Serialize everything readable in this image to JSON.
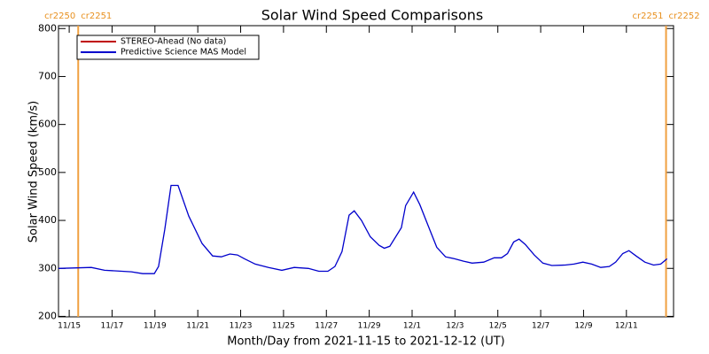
{
  "chart_data": {
    "type": "line",
    "title": "Solar Wind Speed Comparisons",
    "x_label": "Month/Day from 2021-11-15 to 2021-12-12 (UT)",
    "y_label": "Solar Wind Speed (km/s)",
    "xlim": [
      -0.5,
      28.2
    ],
    "ylim": [
      199,
      806
    ],
    "xticks": [
      {
        "value": 0,
        "label": "11/15"
      },
      {
        "value": 2,
        "label": "11/17"
      },
      {
        "value": 4,
        "label": "11/19"
      },
      {
        "value": 6,
        "label": "11/21"
      },
      {
        "value": 8,
        "label": "11/23"
      },
      {
        "value": 10,
        "label": "11/25"
      },
      {
        "value": 12,
        "label": "11/27"
      },
      {
        "value": 14,
        "label": "11/29"
      },
      {
        "value": 16,
        "label": "12/1"
      },
      {
        "value": 18,
        "label": "12/3"
      },
      {
        "value": 20,
        "label": "12/5"
      },
      {
        "value": 22,
        "label": "12/7"
      },
      {
        "value": 24,
        "label": "12/9"
      },
      {
        "value": 26,
        "label": "12/11"
      }
    ],
    "yticks": [
      200,
      300,
      400,
      500,
      600,
      700,
      800
    ],
    "cr_boundaries": [
      {
        "x": 0.42,
        "left": "cr2250",
        "right": "cr2251"
      },
      {
        "x": 27.85,
        "left": "cr2251",
        "right": "cr2252"
      }
    ],
    "cr_color": "#f0a040",
    "legend": "upper left",
    "series": [
      {
        "name": "STEREO-Ahead (No data)",
        "color": "#c00000",
        "x": [],
        "values": []
      },
      {
        "name": "Predictive Science MAS Model",
        "color": "#0000cc",
        "x": [
          -0.5,
          1.03,
          1.65,
          2.9,
          3.43,
          3.97,
          4.17,
          4.46,
          4.75,
          5.08,
          5.58,
          6.2,
          6.69,
          7.1,
          7.5,
          7.85,
          8.18,
          8.68,
          9.3,
          9.92,
          10.5,
          11.16,
          11.65,
          12.07,
          12.4,
          12.73,
          13.06,
          13.3,
          13.64,
          14.05,
          14.46,
          14.7,
          14.96,
          15.5,
          15.7,
          16.07,
          16.36,
          16.74,
          17.15,
          17.56,
          17.98,
          18.4,
          18.8,
          19.34,
          19.83,
          20.17,
          20.45,
          20.74,
          20.99,
          21.28,
          21.7,
          22.1,
          22.52,
          23.14,
          23.55,
          23.97,
          24.38,
          24.8,
          25.2,
          25.5,
          25.83,
          26.12,
          26.45,
          26.86,
          27.27,
          27.6,
          27.9
        ],
        "values": [
          300,
          302,
          296,
          293,
          289,
          289,
          304,
          381,
          473,
          473,
          409,
          352,
          326,
          324,
          330,
          328,
          320,
          309,
          302,
          296,
          302,
          300,
          294,
          294,
          304,
          335,
          411,
          420,
          400,
          366,
          348,
          342,
          346,
          385,
          431,
          459,
          433,
          390,
          344,
          324,
          320,
          315,
          311,
          313,
          322,
          322,
          331,
          355,
          361,
          350,
          328,
          311,
          306,
          307,
          309,
          313,
          309,
          302,
          304,
          313,
          331,
          337,
          326,
          313,
          307,
          309,
          320
        ]
      }
    ]
  }
}
